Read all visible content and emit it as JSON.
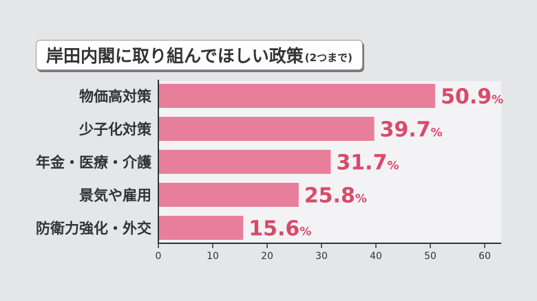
{
  "chart_data": {
    "type": "bar",
    "orientation": "horizontal",
    "title": "岸田内閣に取り組んでほしい政策",
    "subtitle": "(2つまで)",
    "categories": [
      "物価高対策",
      "少子化対策",
      "年金・医療・介護",
      "景気や雇用",
      "防衛力強化・外交"
    ],
    "values": [
      50.9,
      39.7,
      31.7,
      25.8,
      15.6
    ],
    "value_labels": [
      "50.9",
      "39.7",
      "31.7",
      "25.8",
      "15.6"
    ],
    "value_unit": "%",
    "x_ticks": [
      "0",
      "10",
      "20",
      "30",
      "40",
      "50",
      "60"
    ],
    "xlim": [
      0,
      60
    ],
    "xlabel": "",
    "ylabel": "",
    "grid": false,
    "legend": "none",
    "colors": {
      "bar": "#e87f9a",
      "value_label": "#d94a6a",
      "axis": "#333333",
      "category_text": "#333333",
      "background": "#e4e6e8",
      "panel": "#f3f3f5"
    }
  }
}
